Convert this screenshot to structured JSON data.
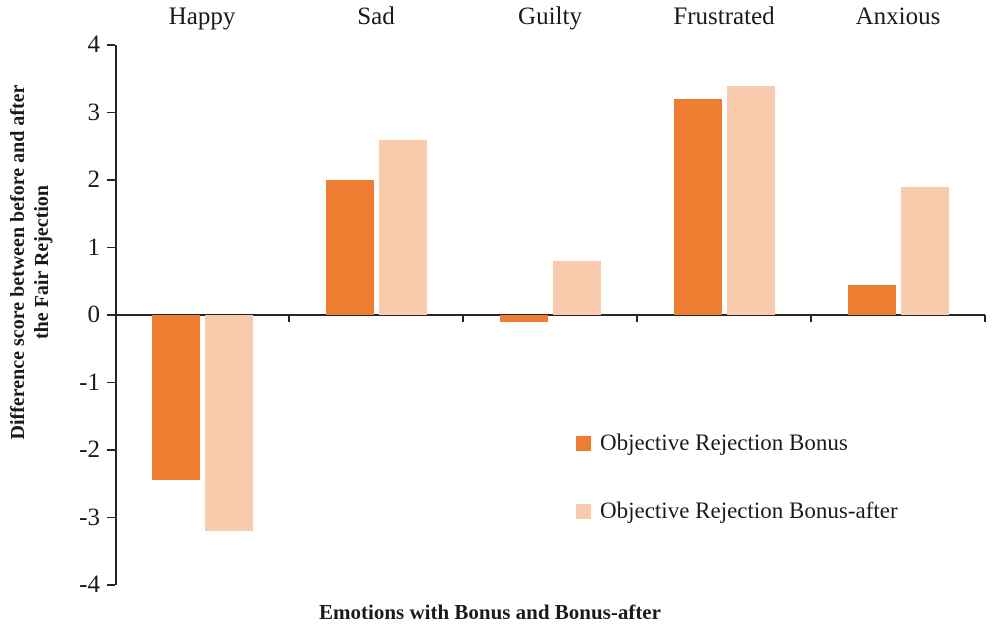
{
  "chart_data": {
    "type": "bar",
    "title": "",
    "categories": [
      "Happy",
      "Sad",
      "Guilty",
      "Frustrated",
      "Anxious"
    ],
    "series": [
      {
        "name": "Objective Rejection Bonus",
        "color": "#ED7D31",
        "values": [
          -2.45,
          2.0,
          -0.1,
          3.2,
          0.45
        ]
      },
      {
        "name": "Objective Rejection Bonus-after",
        "color": "#F8CBAD",
        "values": [
          -3.2,
          2.6,
          0.8,
          3.4,
          1.9
        ]
      }
    ],
    "xlabel": "Emotions with Bonus and Bonus-after",
    "ylabel": "Difference score between before and after the Fair Rejection",
    "ylim": [
      -4,
      4
    ],
    "yticks": [
      4,
      3,
      2,
      1,
      0,
      -1,
      -2,
      -3,
      -4
    ],
    "grid": false,
    "legend_position": "center-right",
    "axis_color": "#262626",
    "background_color": "#ffffff"
  }
}
